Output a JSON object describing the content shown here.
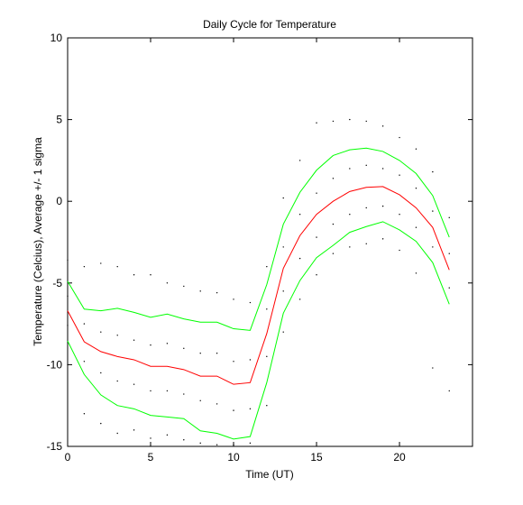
{
  "chart_data": {
    "type": "line",
    "title": "Daily Cycle for Temperature",
    "xlabel": "Time (UT)",
    "ylabel": "Temperature (Celcius), Average +/- 1 sigma",
    "x": [
      0,
      1,
      2,
      3,
      4,
      5,
      6,
      7,
      8,
      9,
      10,
      11,
      12,
      13,
      14,
      15,
      16,
      17,
      18,
      19,
      20,
      21,
      22,
      23
    ],
    "series": [
      {
        "color": "#00ff00",
        "values": [
          -4.9,
          -6.6,
          -6.7,
          -6.55,
          -6.8,
          -7.1,
          -6.9,
          -7.2,
          -7.4,
          -7.4,
          -7.8,
          -7.9,
          -5.1,
          -1.4,
          0.55,
          1.9,
          2.8,
          3.15,
          3.25,
          3.05,
          2.5,
          1.7,
          0.35,
          -2.2
        ]
      },
      {
        "color": "#ff0000",
        "values": [
          -6.7,
          -8.6,
          -9.2,
          -9.5,
          -9.7,
          -10.1,
          -10.1,
          -10.3,
          -10.7,
          -10.7,
          -11.2,
          -11.1,
          -8.1,
          -4.1,
          -2.1,
          -0.8,
          0,
          0.6,
          0.85,
          0.9,
          0.4,
          -0.4,
          -1.6,
          -4.2
        ]
      },
      {
        "color": "#00ff00",
        "values": [
          -8.55,
          -10.6,
          -11.85,
          -12.5,
          -12.7,
          -13.1,
          -13.2,
          -13.3,
          -14.05,
          -14.2,
          -14.55,
          -14.4,
          -11.1,
          -6.85,
          -4.85,
          -3.45,
          -2.7,
          -1.9,
          -1.55,
          -1.25,
          -1.75,
          -2.45,
          -3.75,
          -6.3
        ]
      }
    ],
    "points": {
      "color": "#000000",
      "x": [
        0,
        0,
        0,
        0,
        1,
        1,
        1,
        1,
        2,
        2,
        2,
        2,
        3,
        3,
        3,
        3,
        4,
        4,
        4,
        4,
        5,
        5,
        5,
        5,
        6,
        6,
        6,
        6,
        7,
        7,
        7,
        7,
        8,
        8,
        8,
        8,
        9,
        9,
        9,
        9,
        10,
        10,
        10,
        10,
        11,
        11,
        11,
        11,
        12,
        12,
        12,
        12,
        13,
        13,
        13,
        13,
        14,
        14,
        14,
        14,
        15,
        15,
        15,
        15,
        16,
        16,
        16,
        16,
        17,
        17,
        17,
        17,
        18,
        18,
        18,
        18,
        19,
        19,
        19,
        19,
        20,
        20,
        20,
        20,
        21,
        21,
        21,
        21,
        22,
        22,
        22,
        22,
        23,
        23,
        23,
        23
      ],
      "y": [
        -3.6,
        -5.8,
        -7.6,
        -10.0,
        -4.0,
        -7.5,
        -9.8,
        -13.0,
        -3.8,
        -8.0,
        -10.5,
        -13.6,
        -4.0,
        -8.2,
        -11.0,
        -14.2,
        -4.5,
        -8.5,
        -11.2,
        -14.0,
        -4.5,
        -8.8,
        -11.6,
        -14.5,
        -5.0,
        -8.7,
        -11.6,
        -14.3,
        -5.2,
        -9.0,
        -11.8,
        -14.6,
        -5.5,
        -9.3,
        -12.2,
        -14.8,
        -5.6,
        -9.3,
        -12.4,
        -14.9,
        -6.0,
        -9.8,
        -12.8,
        -14.9,
        -6.2,
        -9.7,
        -12.7,
        -14.8,
        -4.0,
        -6.6,
        -9.5,
        -12.5,
        0.2,
        -2.8,
        -5.5,
        -8.0,
        2.5,
        -0.8,
        -3.5,
        -6.0,
        4.8,
        0.5,
        -2.2,
        -4.5,
        4.9,
        1.4,
        -1.4,
        -3.2,
        5.0,
        2.0,
        -0.8,
        -2.8,
        4.9,
        2.2,
        -0.4,
        -2.6,
        4.6,
        2.0,
        -0.3,
        -2.3,
        3.9,
        1.6,
        -0.8,
        -3.0,
        3.2,
        0.8,
        -1.6,
        -4.4,
        1.8,
        -0.6,
        -2.8,
        -10.2,
        -1.0,
        -3.2,
        -5.3,
        -11.6
      ]
    },
    "xlim": [
      0,
      24.4
    ],
    "xticks": [
      0,
      5,
      10,
      15,
      20
    ],
    "ylim": [
      -15,
      10
    ],
    "yticks": [
      -15,
      -10,
      -5,
      0,
      5,
      10
    ],
    "grid": false
  }
}
